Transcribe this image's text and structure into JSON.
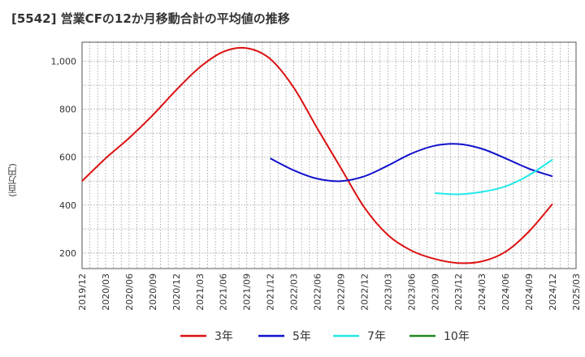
{
  "chart_data": {
    "type": "line",
    "title": "[5542]  営業CFの12か月移動合計の平均値の推移",
    "ylabel": "(百万円)",
    "ylim": [
      135,
      1080
    ],
    "yticks": [
      200,
      400,
      600,
      800,
      "1,000"
    ],
    "xticks": [
      "2019/12",
      "2020/03",
      "2020/06",
      "2020/09",
      "2020/12",
      "2021/03",
      "2021/06",
      "2021/09",
      "2021/12",
      "2022/03",
      "2022/06",
      "2022/09",
      "2022/12",
      "2023/03",
      "2023/06",
      "2023/09",
      "2023/12",
      "2024/03",
      "2024/06",
      "2024/09",
      "2024/12",
      "2025/03"
    ],
    "grid": true,
    "legend_position": "bottom",
    "series": [
      {
        "name": "3年",
        "color": "#dd1111",
        "x": [
          "2019/12",
          "2020/03",
          "2020/06",
          "2020/09",
          "2020/12",
          "2021/03",
          "2021/06",
          "2021/09",
          "2021/12",
          "2022/03",
          "2022/06",
          "2022/09",
          "2022/12",
          "2023/03",
          "2023/06",
          "2023/09",
          "2023/12",
          "2024/03",
          "2024/06",
          "2024/09",
          "2024/12"
        ],
        "values": [
          500,
          595,
          680,
          775,
          880,
          975,
          1040,
          1055,
          1010,
          890,
          720,
          555,
          390,
          275,
          210,
          175,
          158,
          165,
          205,
          290,
          405
        ]
      },
      {
        "name": "5年",
        "color": "#1111cc",
        "x": [
          "2021/12",
          "2022/03",
          "2022/06",
          "2022/09",
          "2022/12",
          "2023/03",
          "2023/06",
          "2023/09",
          "2023/12",
          "2024/03",
          "2024/06",
          "2024/09",
          "2024/12"
        ],
        "values": [
          595,
          545,
          510,
          500,
          520,
          565,
          615,
          648,
          655,
          635,
          595,
          552,
          520
        ]
      },
      {
        "name": "7年",
        "color": "#22e8e8",
        "x": [
          "2023/09",
          "2023/12",
          "2024/03",
          "2024/06",
          "2024/09",
          "2024/12"
        ],
        "values": [
          450,
          445,
          455,
          478,
          525,
          590
        ]
      },
      {
        "name": "10年",
        "color": "#228822",
        "x": [],
        "values": []
      }
    ]
  }
}
